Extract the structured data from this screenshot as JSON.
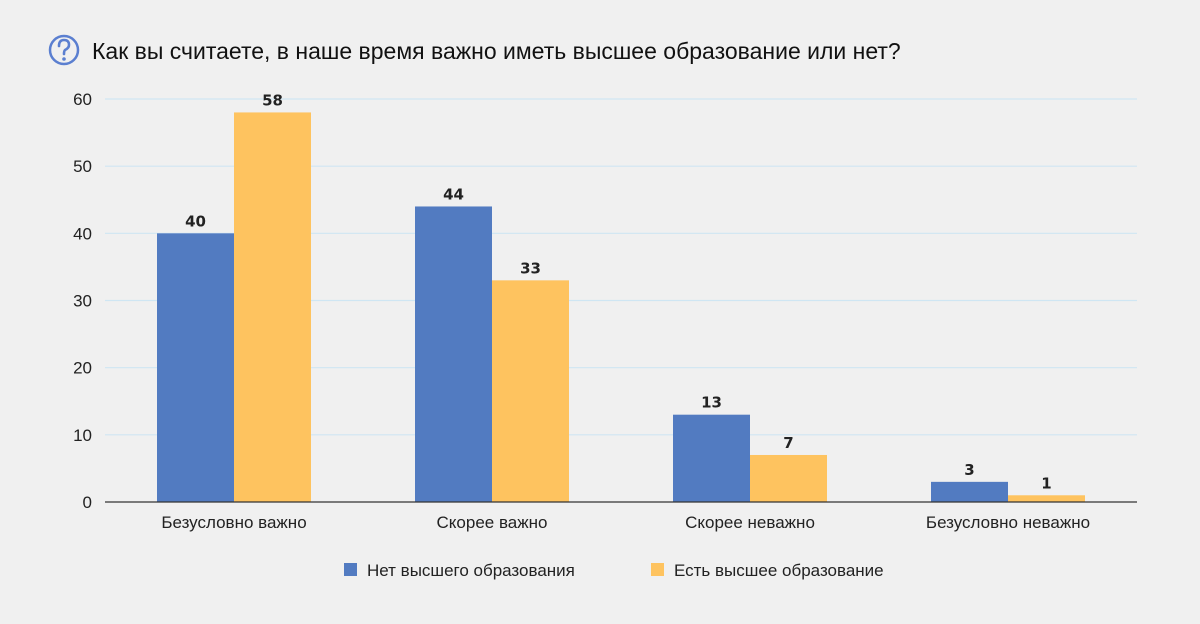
{
  "title": "Как вы считаете, в наше время важно иметь высшее образование или нет?",
  "title_icon": "question-circle-icon",
  "colors": {
    "icon": "#5b7fd0",
    "series_1": "#527bc1",
    "series_2": "#fec35f",
    "grid": "#cfe6f3",
    "axis": "#333333"
  },
  "chart_data": {
    "type": "bar",
    "categories": [
      "Безусловно важно",
      "Скорее важно",
      "Скорее неважно",
      "Безусловно неважно"
    ],
    "series": [
      {
        "name": "Нет высшего образования",
        "values": [
          40,
          44,
          13,
          3
        ]
      },
      {
        "name": "Есть высшее образование",
        "values": [
          58,
          33,
          7,
          1
        ]
      }
    ],
    "yticks": [
      "0",
      "10",
      "20",
      "30",
      "40",
      "50",
      "60"
    ],
    "ylim": [
      0,
      60
    ],
    "grid": true,
    "legend_position": "bottom",
    "data_labels": true
  }
}
